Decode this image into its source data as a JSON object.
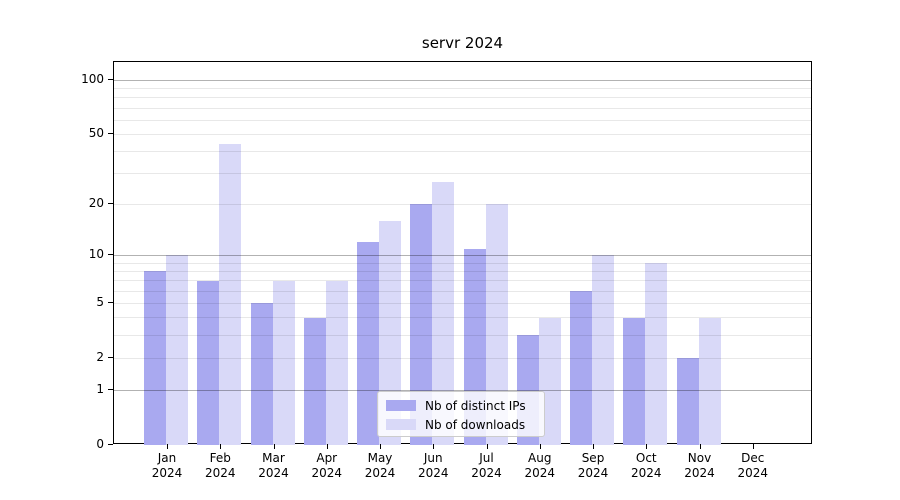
{
  "title": "servr 2024",
  "chart_data": {
    "type": "bar",
    "title": "servr 2024",
    "categories": [
      "Jan",
      "Feb",
      "Mar",
      "Apr",
      "May",
      "Jun",
      "Jul",
      "Aug",
      "Sep",
      "Oct",
      "Nov",
      "Dec"
    ],
    "category_year": "2024",
    "series": [
      {
        "name": "Nb of distinct IPs",
        "color": "#a9a9f0",
        "values": [
          8,
          7,
          5,
          4,
          12,
          20,
          11,
          3,
          6,
          4,
          2,
          0
        ]
      },
      {
        "name": "Nb of downloads",
        "color": "#d9d9f8",
        "values": [
          10,
          44,
          7,
          7,
          16,
          27,
          20,
          4,
          10,
          9,
          4,
          0
        ]
      }
    ],
    "xlabel": "",
    "ylabel": "",
    "yscale": "log10(1+y)",
    "ymax": 125,
    "yticks": [
      0,
      1,
      2,
      5,
      10,
      20,
      50,
      100
    ],
    "major_gridlines": [
      1,
      10,
      100
    ],
    "minor_gridlines": [
      2,
      3,
      4,
      5,
      6,
      7,
      8,
      9,
      20,
      30,
      40,
      50,
      60,
      70,
      80,
      90
    ],
    "grid": true,
    "legend": {
      "position": "lower center",
      "entries": [
        "Nb of distinct IPs",
        "Nb of downloads"
      ]
    },
    "colors": {
      "bar_distinct_ips": "#a9a9f0",
      "bar_downloads": "#d9d9f8",
      "grid_minor": "#e8e8e8",
      "grid_major": "#b2b2b2",
      "axis": "#000000",
      "legend_border": "#cccccc",
      "background": "#ffffff"
    }
  }
}
